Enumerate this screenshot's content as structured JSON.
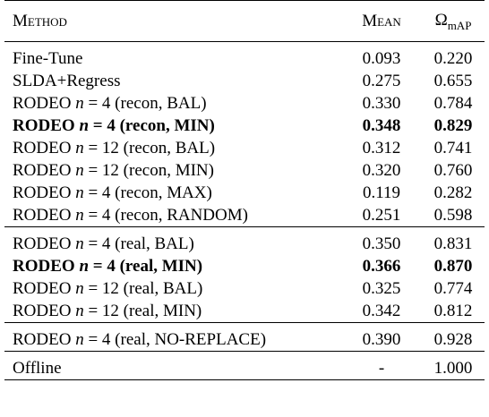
{
  "header": {
    "method": "Method",
    "mean": "Mean",
    "omega_symbol": "Ω",
    "omega_sub": "mAP"
  },
  "groups": [
    {
      "rows": [
        {
          "method": "Fine-Tune",
          "mean": "0.093",
          "omega": "0.220",
          "bold": false
        },
        {
          "method": "SLDA+Regress",
          "mean": "0.275",
          "omega": "0.655",
          "bold": false
        },
        {
          "method": "RODEO",
          "n": "4",
          "config": "(recon, BAL)",
          "mean": "0.330",
          "omega": "0.784",
          "bold": false
        },
        {
          "method": "RODEO",
          "n": "4",
          "config": "(recon, MIN)",
          "mean": "0.348",
          "omega": "0.829",
          "bold": true
        },
        {
          "method": "RODEO",
          "n": "12",
          "config": "(recon, BAL)",
          "mean": "0.312",
          "omega": "0.741",
          "bold": false
        },
        {
          "method": "RODEO",
          "n": "12",
          "config": "(recon, MIN)",
          "mean": "0.320",
          "omega": "0.760",
          "bold": false
        },
        {
          "method": "RODEO",
          "n": "4",
          "config": "(recon, MAX)",
          "mean": "0.119",
          "omega": "0.282",
          "bold": false
        },
        {
          "method": "RODEO",
          "n": "4",
          "config": "(recon, RANDOM)",
          "mean": "0.251",
          "omega": "0.598",
          "bold": false
        }
      ]
    },
    {
      "rows": [
        {
          "method": "RODEO",
          "n": "4",
          "config": "(real, BAL)",
          "mean": "0.350",
          "omega": "0.831",
          "bold": false
        },
        {
          "method": "RODEO",
          "n": "4",
          "config": "(real, MIN)",
          "mean": "0.366",
          "omega": "0.870",
          "bold": true
        },
        {
          "method": "RODEO",
          "n": "12",
          "config": "(real, BAL)",
          "mean": "0.325",
          "omega": "0.774",
          "bold": false
        },
        {
          "method": "RODEO",
          "n": "12",
          "config": "(real, MIN)",
          "mean": "0.342",
          "omega": "0.812",
          "bold": false
        }
      ]
    },
    {
      "rows": [
        {
          "method": "RODEO",
          "n": "4",
          "config": "(real, NO-REPLACE)",
          "mean": "0.390",
          "omega": "0.928",
          "bold": false
        }
      ]
    },
    {
      "rows": [
        {
          "method": "Offline",
          "mean": "-",
          "omega": "1.000",
          "bold": false
        }
      ]
    }
  ],
  "symbols": {
    "n_var": "n",
    "equals": "="
  }
}
